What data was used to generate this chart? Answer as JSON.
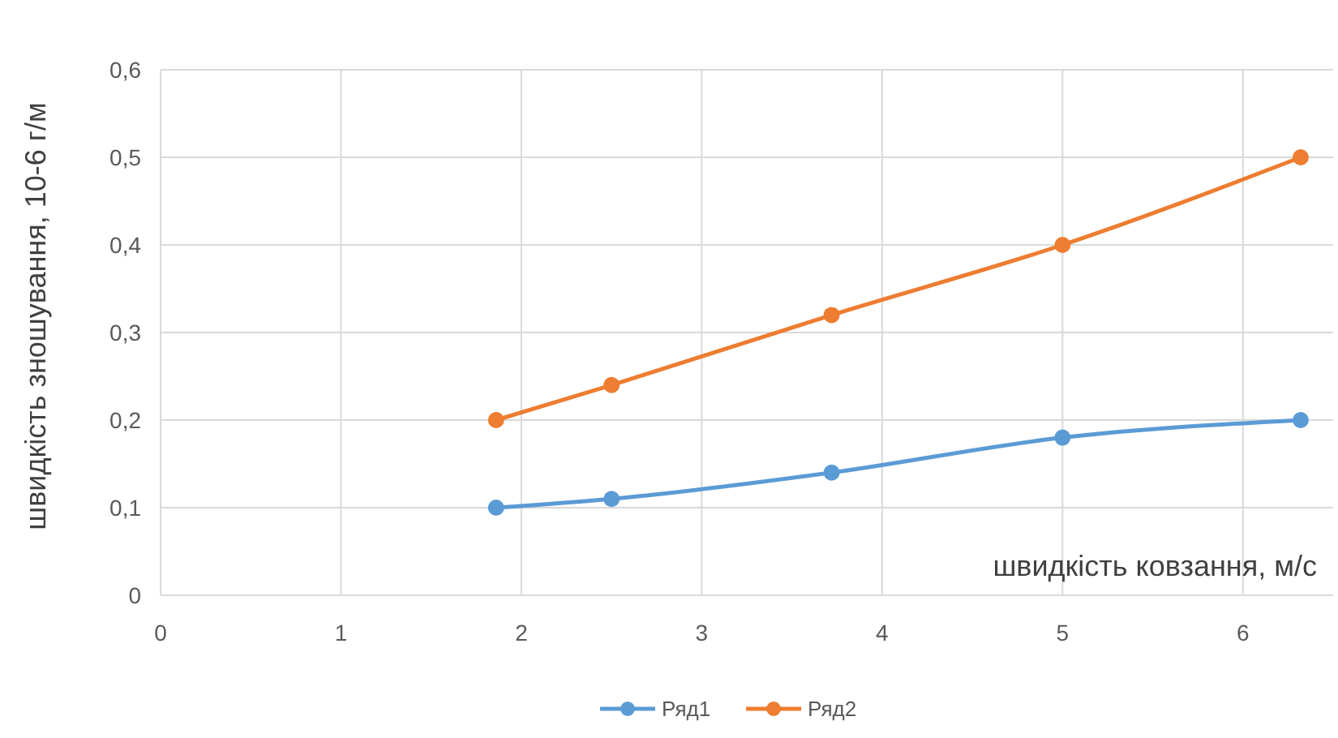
{
  "chart_data": {
    "type": "line",
    "xlabel": "швидкість ковзання, м/с",
    "ylabel": "швидкість зношування, 10-6 г/м",
    "xlim": [
      0,
      6.5
    ],
    "xticks": [
      0,
      1,
      2,
      3,
      4,
      5,
      6
    ],
    "ylim": [
      0,
      0.6
    ],
    "yticks": [
      {
        "value": 0,
        "label": "0"
      },
      {
        "value": 0.1,
        "label": "0,1"
      },
      {
        "value": 0.2,
        "label": "0,2"
      },
      {
        "value": 0.3,
        "label": "0,3"
      },
      {
        "value": 0.4,
        "label": "0,4"
      },
      {
        "value": 0.5,
        "label": "0,5"
      },
      {
        "value": 0.6,
        "label": "0,6"
      }
    ],
    "grid": true,
    "legend": "bottom",
    "marker": "circle",
    "line_style": "solid",
    "series": [
      {
        "name": "Ряд1",
        "color": "#5b9bd5",
        "x": [
          1.86,
          2.5,
          3.72,
          5.0,
          6.32
        ],
        "values": [
          0.1,
          0.11,
          0.14,
          0.18,
          0.2
        ]
      },
      {
        "name": "Ряд2",
        "color": "#ed7d31",
        "x": [
          1.86,
          2.5,
          3.72,
          5.0,
          6.32
        ],
        "values": [
          0.2,
          0.24,
          0.32,
          0.4,
          0.5
        ]
      }
    ]
  }
}
